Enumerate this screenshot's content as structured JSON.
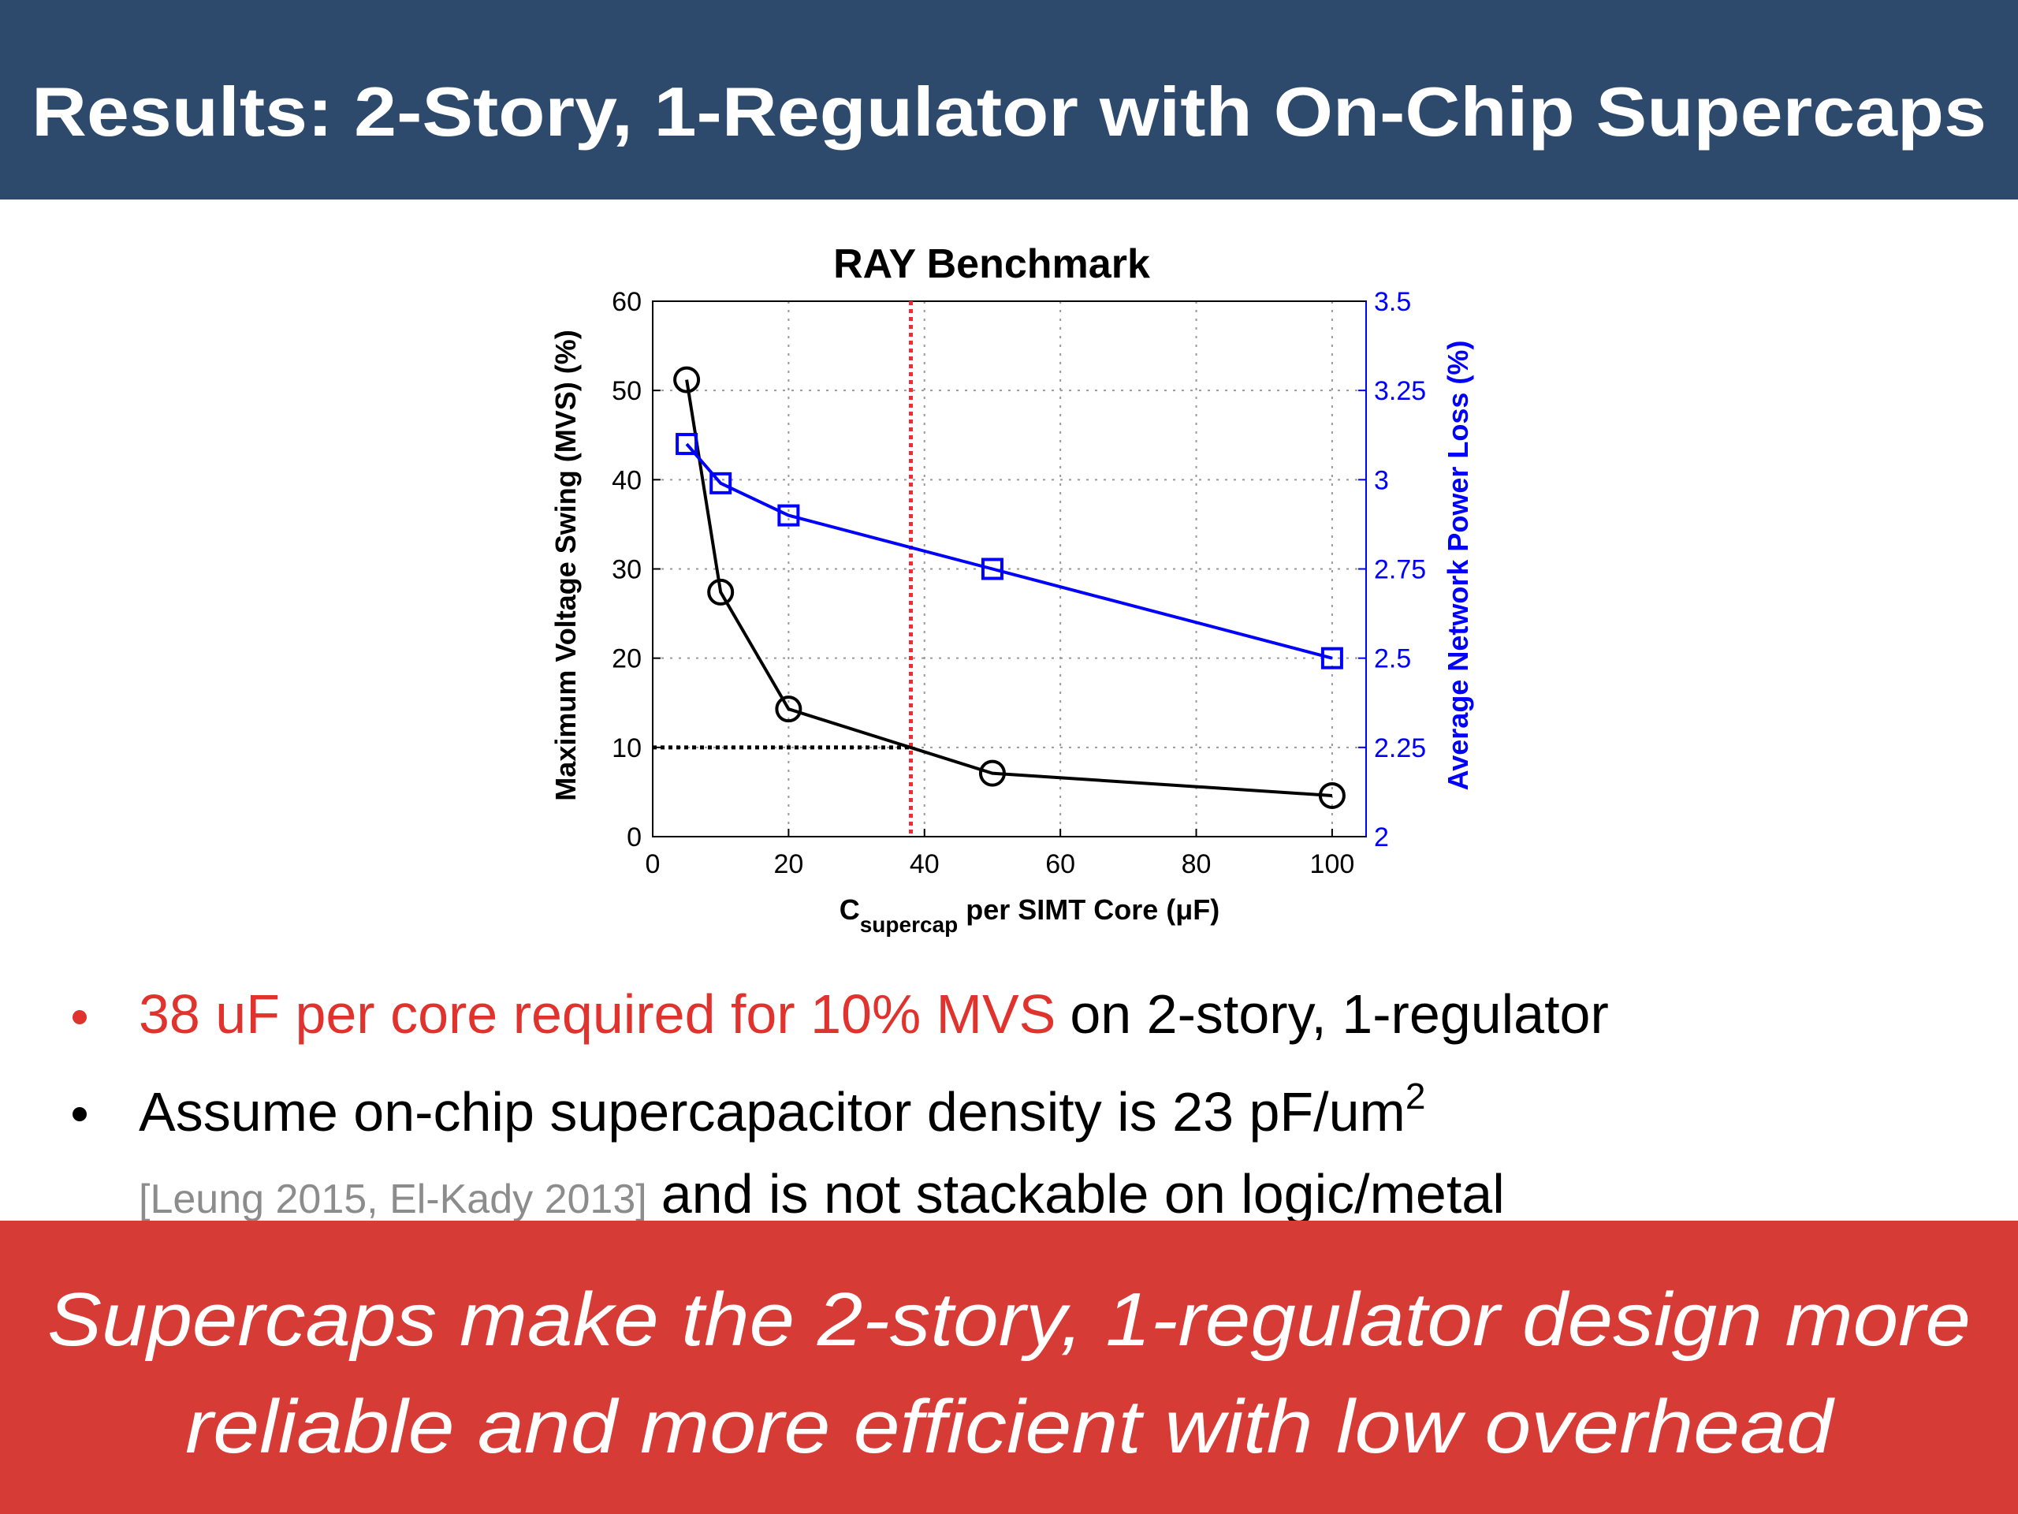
{
  "header": {
    "title": "Results: 2-Story, 1-Regulator with On-Chip Supercaps"
  },
  "chart_data": {
    "type": "line",
    "title": "RAY Benchmark",
    "xlabel": "C",
    "xlabel_subscript": "supercap",
    "xlabel_rest": "per SIMT Core (μF)",
    "ylabel": "Maximum Voltage Swing (MVS) (%)",
    "y2label": "Average Network Power Loss (%)",
    "x": [
      5,
      10,
      20,
      50,
      100
    ],
    "series": [
      {
        "name": "Maximum Voltage Swing (MVS)",
        "color": "#000000",
        "marker": "circle",
        "values": [
          51.2,
          27.4,
          14.3,
          7.1,
          4.6
        ]
      },
      {
        "name": "Average Network Power Loss",
        "color": "#0000ff",
        "marker": "square",
        "axis": "y2",
        "values": [
          3.1,
          2.99,
          2.9,
          2.75,
          2.5
        ]
      }
    ],
    "xlim": [
      0,
      105
    ],
    "xticks": [
      0,
      20,
      40,
      60,
      80,
      100
    ],
    "ylim": [
      0,
      60
    ],
    "yticks": [
      0,
      10,
      20,
      30,
      40,
      50,
      60
    ],
    "y2lim": [
      2,
      3.5
    ],
    "y2ticks": [
      2,
      2.25,
      2.5,
      2.75,
      3,
      3.25,
      3.5
    ],
    "grid": true,
    "reference_x": 38,
    "reference_x_color": "#e8312d",
    "reference_y": 10,
    "reference_y_color": "#000000"
  },
  "bullets": [
    {
      "highlight": "38 uF per core required for 10% MVS",
      "text": "on 2-story, 1-regulator"
    },
    {
      "text": "Assume on-chip supercapacitor density is 23 pF/um",
      "superscript": "2",
      "citation": "[Leung 2015, El-Kady 2013]",
      "continuation": "and is not stackable on logic/metal"
    }
  ],
  "banner": {
    "lines": [
      "Supercaps make the 2-story, 1-regulator design more",
      "reliable and more efficient with low overhead"
    ]
  }
}
